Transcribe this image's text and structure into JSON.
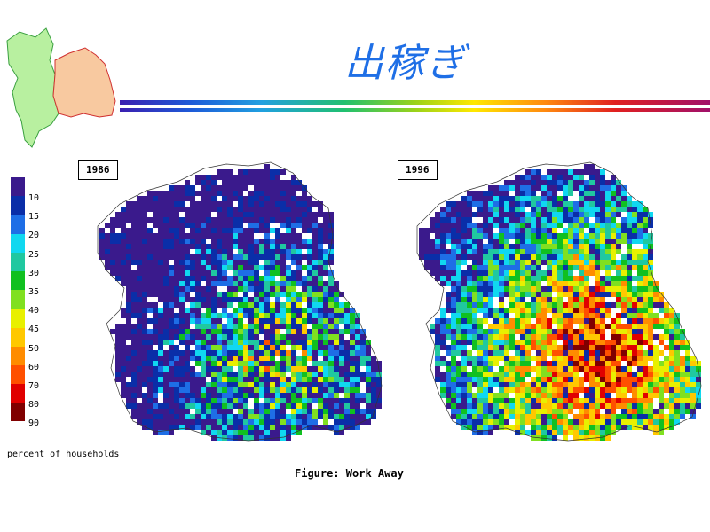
{
  "title": "出稼ぎ",
  "maps": [
    {
      "year": "1986",
      "low_bias": 0.72
    },
    {
      "year": "1996",
      "low_bias": 0.22
    }
  ],
  "legend": {
    "labels": [
      "10",
      "15",
      "20",
      "25",
      "30",
      "35",
      "40",
      "45",
      "50",
      "60",
      "70",
      "80",
      "90"
    ],
    "colors": [
      "#3a1a8c",
      "#0a2ea8",
      "#1e6ee6",
      "#10d8f0",
      "#20c8a0",
      "#10c020",
      "#80e020",
      "#e8f000",
      "#ffc800",
      "#ff8c00",
      "#ff5000",
      "#e00000",
      "#800000"
    ],
    "caption": "percent of households"
  },
  "figure_caption": "Figure: Work Away",
  "colors": {
    "title": "#1f6fe6",
    "highlight_region": "#f8c9a0",
    "other_region": "#b8f0a0"
  }
}
